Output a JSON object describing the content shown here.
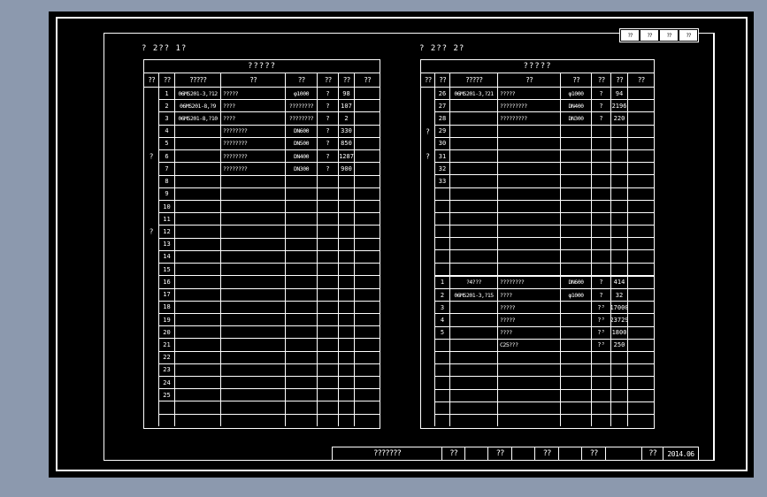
{
  "captions": {
    "left": "? 2?? 1?",
    "right": "? 2?? 2?"
  },
  "left_table": {
    "title": "?????",
    "columns": [
      "??",
      "??",
      "?????",
      "??",
      "??",
      "??",
      "??",
      "??"
    ],
    "groups": [
      {
        "label": "?",
        "row": 5
      },
      {
        "label": "?",
        "row": 11
      }
    ],
    "rows": [
      {
        "num": "1",
        "atlas": "06MS201-3,?12",
        "name": "?????",
        "spec": "φ1000",
        "unit": "?",
        "qty": "98"
      },
      {
        "num": "2",
        "atlas": "06MS201-8,?9",
        "name": "????",
        "spec": "????????",
        "unit": "?",
        "qty": "107"
      },
      {
        "num": "3",
        "atlas": "06MS201-8,?10",
        "name": "????",
        "spec": "????????",
        "unit": "?",
        "qty": "2"
      },
      {
        "num": "4",
        "atlas": "",
        "name": "????????",
        "spec": "DN600",
        "unit": "?",
        "qty": "330"
      },
      {
        "num": "5",
        "atlas": "",
        "name": "????????",
        "spec": "DN500",
        "unit": "?",
        "qty": "850"
      },
      {
        "num": "6",
        "atlas": "",
        "name": "????????",
        "spec": "DN400",
        "unit": "?",
        "qty": "1287"
      },
      {
        "num": "7",
        "atlas": "",
        "name": "????????",
        "spec": "DN300",
        "unit": "?",
        "qty": "900"
      },
      {
        "num": "8"
      },
      {
        "num": "9"
      },
      {
        "num": "10"
      },
      {
        "num": "11"
      },
      {
        "num": "12"
      },
      {
        "num": "13"
      },
      {
        "num": "14"
      },
      {
        "num": "15"
      },
      {
        "num": "16"
      },
      {
        "num": "17"
      },
      {
        "num": "18"
      },
      {
        "num": "19"
      },
      {
        "num": "20"
      },
      {
        "num": "21"
      },
      {
        "num": "22"
      },
      {
        "num": "23"
      },
      {
        "num": "24"
      },
      {
        "num": "25"
      },
      {
        "num": ""
      },
      {
        "num": ""
      }
    ]
  },
  "right_table": {
    "title": "?????",
    "columns": [
      "??",
      "??",
      "?????",
      "??",
      "??",
      "??",
      "??",
      "??"
    ],
    "groups": [
      {
        "label": "?",
        "row": 3
      },
      {
        "label": "?",
        "row": 5
      }
    ],
    "rows": [
      {
        "num": "26",
        "atlas": "06MS201-3,?21",
        "name": "?????",
        "spec": "φ1000",
        "unit": "?",
        "qty": "94"
      },
      {
        "num": "27",
        "atlas": "",
        "name": "?????????",
        "spec": "DN400",
        "unit": "?",
        "qty": "2196"
      },
      {
        "num": "28",
        "atlas": "",
        "name": "?????????",
        "spec": "DN300",
        "unit": "?",
        "qty": "220"
      },
      {
        "num": "29"
      },
      {
        "num": "30"
      },
      {
        "num": "31"
      },
      {
        "num": "32"
      },
      {
        "num": "33"
      },
      {
        "num": ""
      },
      {
        "num": ""
      },
      {
        "num": ""
      },
      {
        "num": ""
      },
      {
        "num": ""
      },
      {
        "num": ""
      },
      {
        "num": ""
      },
      {
        "num": "1",
        "atlas": "?4???",
        "name": "????????",
        "spec": "DN600",
        "unit": "?",
        "qty": "414",
        "section": true
      },
      {
        "num": "2",
        "atlas": "06MS201-3,?15",
        "name": "????",
        "spec": "φ1000",
        "unit": "?",
        "qty": "32"
      },
      {
        "num": "3",
        "atlas": "",
        "name": "?????",
        "spec": "",
        "unit": "?³",
        "qty": "17000"
      },
      {
        "num": "4",
        "atlas": "",
        "name": "?????",
        "spec": "",
        "unit": "?³",
        "qty": "23729"
      },
      {
        "num": "5",
        "atlas": "",
        "name": "????",
        "spec": "",
        "unit": "?³",
        "qty": "1800"
      },
      {
        "num": "",
        "atlas": "",
        "name": "C25???",
        "spec": "",
        "unit": "?³",
        "qty": "250"
      },
      {
        "num": ""
      },
      {
        "num": ""
      },
      {
        "num": ""
      },
      {
        "num": ""
      },
      {
        "num": ""
      },
      {
        "num": ""
      }
    ]
  },
  "stamp": {
    "cells": [
      "??",
      "??",
      "??",
      "??"
    ]
  },
  "footer": {
    "project": "???????",
    "fields": [
      {
        "label": "??",
        "value": ""
      },
      {
        "label": "??",
        "value": ""
      },
      {
        "label": "??",
        "value": ""
      },
      {
        "label": "??",
        "value": ""
      }
    ],
    "sign_label": "??",
    "date": "2014.06"
  },
  "colors": {
    "background": "#8c99ae",
    "canvas": "#000000",
    "line": "#ffffff"
  }
}
